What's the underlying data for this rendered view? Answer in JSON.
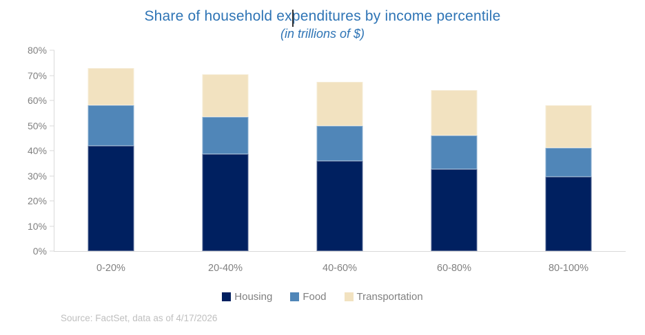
{
  "palette": {
    "title_blue": "#2E74B5",
    "axis_line": "#D9D9D9",
    "axis_label": "#808080",
    "legend_label": "#808080",
    "source_text": "#BFBFBF"
  },
  "source_note": "Source: FactSet, data as of 4/17/2026",
  "chart_data": {
    "type": "bar",
    "stacked": true,
    "title": "Share of household expenditures by income percentile",
    "subtitle": "(in trillions of $)",
    "categories": [
      "0-20%",
      "20-40%",
      "40-60%",
      "60-80%",
      "80-100%"
    ],
    "series": [
      {
        "name": "Housing",
        "color": "#002060",
        "values": [
          42,
          38.5,
          36,
          32.5,
          29.5
        ]
      },
      {
        "name": "Food",
        "color": "#5086B8",
        "values": [
          16,
          15,
          14,
          13.5,
          11.5
        ]
      },
      {
        "name": "Transportation",
        "color": "#F2E2C0",
        "values": [
          15,
          17,
          17.5,
          18,
          17
        ]
      }
    ],
    "stack_totals": [
      73,
      70.5,
      67.5,
      64,
      58
    ],
    "ylim": [
      0,
      80
    ],
    "yticks": [
      "0%",
      "10%",
      "20%",
      "30%",
      "40%",
      "50%",
      "60%",
      "70%",
      "80%"
    ],
    "grid": false,
    "legend_position": "bottom"
  }
}
